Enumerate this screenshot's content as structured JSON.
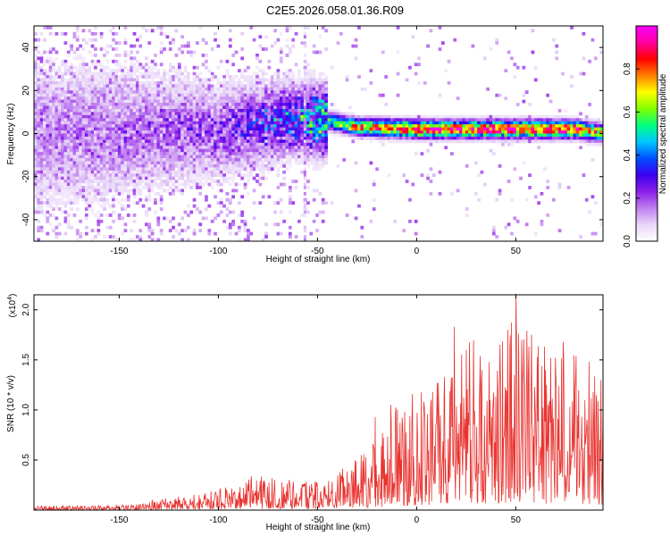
{
  "title": "C2E5.2026.058.01.36.R09",
  "chart_data": [
    {
      "type": "heatmap",
      "name": "spectrogram",
      "xlabel": "Height of straight line (km)",
      "ylabel": "Frequency (Hz)",
      "xlim": [
        -193,
        94
      ],
      "ylim": [
        -50,
        50
      ],
      "xticks": [
        -150,
        -100,
        -50,
        0,
        50
      ],
      "yticks": [
        -40,
        -20,
        0,
        20,
        40
      ],
      "colorbar": {
        "label": "Normalized spectral amplitude",
        "range": [
          0,
          1
        ],
        "ticks": [
          0.0,
          0.2,
          0.4,
          0.6,
          0.8
        ],
        "tick_labels": [
          "0.0",
          "0.2",
          "0.4",
          "0.6",
          "0.8"
        ],
        "colormap": [
          "#ffffff",
          "#e8d6f8",
          "#c07ef0",
          "#8a1ee8",
          "#3a00f0",
          "#0050ff",
          "#00c8ff",
          "#00ff80",
          "#80ff00",
          "#ffff00",
          "#ff8000",
          "#ff0000",
          "#ff00a0",
          "#ff00ff"
        ]
      },
      "ridge": [
        {
          "x": -193,
          "f": 0,
          "amp": 0.16
        },
        {
          "x": -150,
          "f": 0,
          "amp": 0.18
        },
        {
          "x": -120,
          "f": 2,
          "amp": 0.2
        },
        {
          "x": -100,
          "f": 1,
          "amp": 0.22
        },
        {
          "x": -80,
          "f": 5,
          "amp": 0.3
        },
        {
          "x": -60,
          "f": 7,
          "amp": 0.4
        },
        {
          "x": -45,
          "f": 6,
          "amp": 0.55
        },
        {
          "x": -30,
          "f": 3,
          "amp": 0.8
        },
        {
          "x": 0,
          "f": 2,
          "amp": 0.92
        },
        {
          "x": 50,
          "f": 2,
          "amp": 0.95
        },
        {
          "x": 80,
          "f": 2,
          "amp": 0.93
        },
        {
          "x": 94,
          "f": 0,
          "amp": 0.7
        }
      ]
    },
    {
      "type": "line",
      "name": "snr",
      "xlabel": "Height of straight line (km)",
      "ylabel": "SNR (10 * v/v)",
      "multiplier_label": "(x10",
      "multiplier_exponent": "4",
      "multiplier_close": ")",
      "xlim": [
        -193,
        94
      ],
      "ylim": [
        0,
        21500
      ],
      "xticks": [
        -150,
        -100,
        -50,
        0,
        50
      ],
      "yticks": [
        5000,
        10000,
        15000,
        20000
      ],
      "ytick_labels": [
        "0.5",
        "1.0",
        "1.5",
        "2.0"
      ],
      "color": "#e8332f",
      "envelope": [
        {
          "x": -193,
          "y": 400
        },
        {
          "x": -140,
          "y": 600
        },
        {
          "x": -130,
          "y": 1200
        },
        {
          "x": -110,
          "y": 1600
        },
        {
          "x": -100,
          "y": 2200
        },
        {
          "x": -85,
          "y": 3500
        },
        {
          "x": -60,
          "y": 3000
        },
        {
          "x": -45,
          "y": 2800
        },
        {
          "x": -35,
          "y": 5000
        },
        {
          "x": -20,
          "y": 7500
        },
        {
          "x": -10,
          "y": 11000
        },
        {
          "x": 0,
          "y": 11500
        },
        {
          "x": 10,
          "y": 13500
        },
        {
          "x": 20,
          "y": 17500
        },
        {
          "x": 35,
          "y": 17000
        },
        {
          "x": 45,
          "y": 17500
        },
        {
          "x": 50,
          "y": 21000
        },
        {
          "x": 60,
          "y": 17000
        },
        {
          "x": 70,
          "y": 16000
        },
        {
          "x": 80,
          "y": 16000
        },
        {
          "x": 94,
          "y": 13000
        }
      ],
      "peaks": [
        {
          "x": -21,
          "y": 9300
        },
        {
          "x": -13,
          "y": 10500
        },
        {
          "x": -6,
          "y": 9800
        },
        {
          "x": -2,
          "y": 11600
        },
        {
          "x": 4,
          "y": 10300
        },
        {
          "x": 8,
          "y": 11800
        },
        {
          "x": 14,
          "y": 13300
        },
        {
          "x": 19,
          "y": 18300
        },
        {
          "x": 25,
          "y": 16000
        },
        {
          "x": 33,
          "y": 14000
        },
        {
          "x": 37,
          "y": 11000
        },
        {
          "x": 42,
          "y": 16500
        },
        {
          "x": 46,
          "y": 18000
        },
        {
          "x": 50,
          "y": 21600
        },
        {
          "x": 53,
          "y": 17000
        },
        {
          "x": 58,
          "y": 17500
        },
        {
          "x": 65,
          "y": 14000
        },
        {
          "x": 70,
          "y": 15200
        },
        {
          "x": 74,
          "y": 16800
        },
        {
          "x": 80,
          "y": 12000
        },
        {
          "x": 87,
          "y": 14800
        },
        {
          "x": 93,
          "y": 13000
        }
      ]
    }
  ]
}
